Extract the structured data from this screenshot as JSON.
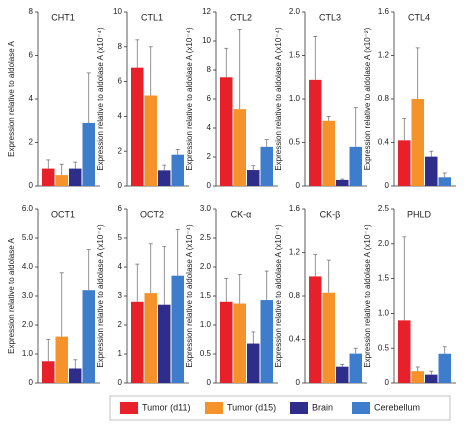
{
  "chart_data": [
    {
      "type": "bar",
      "title": "CHT1",
      "ylabel": "Expression relative to aldolase A",
      "ylim": [
        0,
        8
      ],
      "yticks": [
        0,
        2,
        4,
        6,
        8
      ],
      "series": [
        {
          "name": "Tumor (d11)",
          "color": "#e8202a",
          "values": [
            0.8
          ],
          "errors": [
            0.4
          ]
        },
        {
          "name": "Tumor (d15)",
          "color": "#f5922a",
          "values": [
            0.5
          ],
          "errors": [
            0.5
          ]
        },
        {
          "name": "Brain",
          "color": "#2f2d8a",
          "values": [
            0.8
          ],
          "errors": [
            0.3
          ]
        },
        {
          "name": "Cerebellum",
          "color": "#3e7ccc",
          "values": [
            2.9
          ],
          "errors": [
            2.3
          ]
        }
      ]
    },
    {
      "type": "bar",
      "title": "CTL1",
      "ylabel": "Expression relative to aldolase A (x10⁻⁴)",
      "ylim": [
        0,
        10
      ],
      "yticks": [
        0,
        2,
        4,
        6,
        8,
        10
      ],
      "series": [
        {
          "color": "#e8202a",
          "values": [
            6.8
          ],
          "errors": [
            1.6
          ]
        },
        {
          "color": "#f5922a",
          "values": [
            5.2
          ],
          "errors": [
            2.8
          ]
        },
        {
          "color": "#2f2d8a",
          "values": [
            0.9
          ],
          "errors": [
            0.3
          ]
        },
        {
          "color": "#3e7ccc",
          "values": [
            1.8
          ],
          "errors": [
            0.3
          ]
        }
      ]
    },
    {
      "type": "bar",
      "title": "CTL2",
      "ylabel": "Expression relative to aldolase A (x10⁻⁴)",
      "ylim": [
        0,
        12
      ],
      "yticks": [
        0,
        2,
        4,
        6,
        8,
        10,
        12
      ],
      "series": [
        {
          "color": "#e8202a",
          "values": [
            7.5
          ],
          "errors": [
            2.0
          ]
        },
        {
          "color": "#f5922a",
          "values": [
            5.3
          ],
          "errors": [
            5.5
          ]
        },
        {
          "color": "#2f2d8a",
          "values": [
            1.1
          ],
          "errors": [
            0.3
          ]
        },
        {
          "color": "#3e7ccc",
          "values": [
            2.7
          ],
          "errors": [
            0.5
          ]
        }
      ]
    },
    {
      "type": "bar",
      "title": "CTL3",
      "ylabel": "Expression relative to aldolase A (x10⁻⁴)",
      "ylim": [
        0,
        2
      ],
      "yticks": [
        0,
        0.5,
        {
          "value": 1,
          "label": "1.0"
        },
        1.5,
        {
          "value": 2,
          "label": "2.0"
        }
      ],
      "series": [
        {
          "color": "#e8202a",
          "values": [
            1.22
          ],
          "errors": [
            0.5
          ]
        },
        {
          "color": "#f5922a",
          "values": [
            0.75
          ],
          "errors": [
            0.05
          ]
        },
        {
          "color": "#2f2d8a",
          "values": [
            0.07
          ],
          "errors": [
            0.01
          ]
        },
        {
          "color": "#3e7ccc",
          "values": [
            0.45
          ],
          "errors": [
            0.45
          ]
        }
      ]
    },
    {
      "type": "bar",
      "title": "CTL4",
      "ylabel": "Expression relative to aldolase A (x10⁻²)",
      "ylim": [
        0,
        1.6
      ],
      "yticks": [
        0,
        0.4,
        0.8,
        1.2,
        1.6
      ],
      "series": [
        {
          "color": "#e8202a",
          "values": [
            0.42
          ],
          "errors": [
            0.2
          ]
        },
        {
          "color": "#f5922a",
          "values": [
            0.8
          ],
          "errors": [
            0.47
          ]
        },
        {
          "color": "#2f2d8a",
          "values": [
            0.27
          ],
          "errors": [
            0.05
          ]
        },
        {
          "color": "#3e7ccc",
          "values": [
            0.08
          ],
          "errors": [
            0.04
          ]
        }
      ]
    },
    {
      "type": "bar",
      "title": "OCT1",
      "ylabel": "Expression relative to aldolase A",
      "ylim": [
        0,
        6
      ],
      "yticks": [
        0,
        {
          "value": 1,
          "label": "1.0"
        },
        {
          "value": 2,
          "label": "2.0"
        },
        {
          "value": 3,
          "label": "3.0"
        },
        {
          "value": 4,
          "label": "4.0"
        },
        {
          "value": 5,
          "label": "5.0"
        },
        {
          "value": 6,
          "label": "6.0"
        }
      ],
      "series": [
        {
          "color": "#e8202a",
          "values": [
            0.75
          ],
          "errors": [
            0.75
          ]
        },
        {
          "color": "#f5922a",
          "values": [
            1.6
          ],
          "errors": [
            2.2
          ]
        },
        {
          "color": "#2f2d8a",
          "values": [
            0.5
          ],
          "errors": [
            0.3
          ]
        },
        {
          "color": "#3e7ccc",
          "values": [
            3.2
          ],
          "errors": [
            1.4
          ]
        }
      ]
    },
    {
      "type": "bar",
      "title": "OCT2",
      "ylabel": "Expression relative to aldolase A (x10⁻⁴)",
      "ylim": [
        0,
        6
      ],
      "yticks": [
        0,
        1,
        2,
        3,
        4,
        5,
        6
      ],
      "series": [
        {
          "color": "#e8202a",
          "values": [
            2.8
          ],
          "errors": [
            1.3
          ]
        },
        {
          "color": "#f5922a",
          "values": [
            3.1
          ],
          "errors": [
            1.7
          ]
        },
        {
          "color": "#2f2d8a",
          "values": [
            2.7
          ],
          "errors": [
            2.0
          ]
        },
        {
          "color": "#3e7ccc",
          "values": [
            3.7
          ],
          "errors": [
            1.6
          ]
        }
      ]
    },
    {
      "type": "bar",
      "title": "CK-α",
      "ylabel": "Expression relative to aldolase A (x10⁻⁴)",
      "ylim": [
        0,
        3
      ],
      "yticks": [
        0,
        0.5,
        {
          "value": 1,
          "label": "1.0"
        },
        1.5,
        {
          "value": 2,
          "label": "2.0"
        },
        2.5,
        {
          "value": 3,
          "label": "3.0"
        }
      ],
      "series": [
        {
          "color": "#e8202a",
          "values": [
            1.4
          ],
          "errors": [
            0.4
          ]
        },
        {
          "color": "#f5922a",
          "values": [
            1.37
          ],
          "errors": [
            0.5
          ]
        },
        {
          "color": "#2f2d8a",
          "values": [
            0.68
          ],
          "errors": [
            0.2
          ]
        },
        {
          "color": "#3e7ccc",
          "values": [
            1.43
          ],
          "errors": [
            0.5
          ]
        }
      ]
    },
    {
      "type": "bar",
      "title": "CK-β",
      "ylabel": "Expression relative to aldolase A (x10⁻⁴)",
      "ylim": [
        0,
        1.6
      ],
      "yticks": [
        0,
        0.4,
        0.8,
        1.2,
        1.6
      ],
      "series": [
        {
          "color": "#e8202a",
          "values": [
            0.98
          ],
          "errors": [
            0.2
          ]
        },
        {
          "color": "#f5922a",
          "values": [
            0.83
          ],
          "errors": [
            0.3
          ]
        },
        {
          "color": "#2f2d8a",
          "values": [
            0.15
          ],
          "errors": [
            0.02
          ]
        },
        {
          "color": "#3e7ccc",
          "values": [
            0.27
          ],
          "errors": [
            0.05
          ]
        }
      ]
    },
    {
      "type": "bar",
      "title": "PHLD",
      "ylabel": "Expression relative to aldolase A (x10⁻⁴)",
      "ylim": [
        0,
        2.5
      ],
      "yticks": [
        0,
        0.5,
        {
          "value": 1,
          "label": "1.0"
        },
        1.5,
        {
          "value": 2,
          "label": "2.0"
        },
        2.5
      ],
      "series": [
        {
          "color": "#e8202a",
          "values": [
            0.9
          ],
          "errors": [
            1.2
          ]
        },
        {
          "color": "#f5922a",
          "values": [
            0.17
          ],
          "errors": [
            0.06
          ]
        },
        {
          "color": "#2f2d8a",
          "values": [
            0.12
          ],
          "errors": [
            0.05
          ]
        },
        {
          "color": "#3e7ccc",
          "values": [
            0.42
          ],
          "errors": [
            0.1
          ]
        }
      ]
    }
  ]
}
